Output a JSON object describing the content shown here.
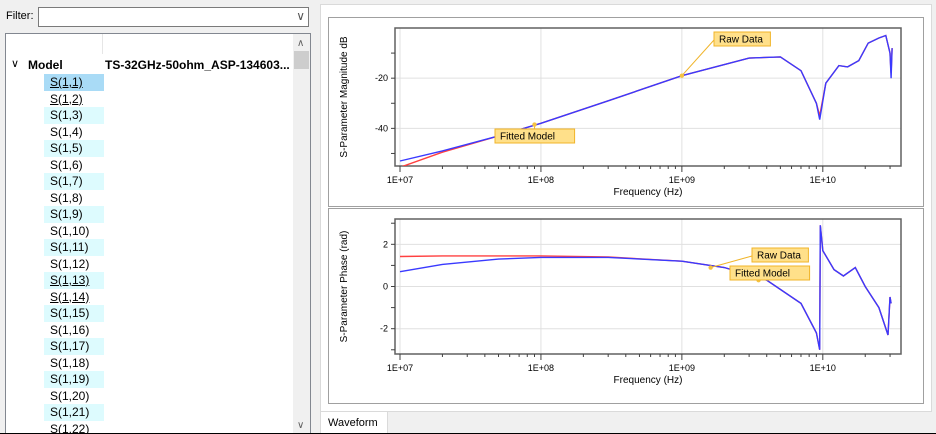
{
  "filter": {
    "label": "Filter:",
    "value": "",
    "placeholder": ""
  },
  "tree": {
    "root_label": "Model",
    "root_value": "TS-32GHz-50ohm_ASP-134603...",
    "items": [
      {
        "label": "S(1,1)",
        "selected": true,
        "link": true
      },
      {
        "label": "S(1,2)",
        "link": true
      },
      {
        "label": "S(1,3)"
      },
      {
        "label": "S(1,4)"
      },
      {
        "label": "S(1,5)"
      },
      {
        "label": "S(1,6)"
      },
      {
        "label": "S(1,7)"
      },
      {
        "label": "S(1,8)"
      },
      {
        "label": "S(1,9)"
      },
      {
        "label": "S(1,10)"
      },
      {
        "label": "S(1,11)"
      },
      {
        "label": "S(1,12)"
      },
      {
        "label": "S(1,13)",
        "link": true
      },
      {
        "label": "S(1,14)",
        "link": true
      },
      {
        "label": "S(1,15)"
      },
      {
        "label": "S(1,16)"
      },
      {
        "label": "S(1,17)"
      },
      {
        "label": "S(1,18)"
      },
      {
        "label": "S(1,19)"
      },
      {
        "label": "S(1,20)"
      },
      {
        "label": "S(1,21)"
      },
      {
        "label": "S(1,22)"
      }
    ]
  },
  "tabs": {
    "waveform": "Waveform"
  },
  "colors": {
    "raw": "#3a3aff",
    "fitted": "#ff4040",
    "annotation_bg": "#ffe08a",
    "annotation_border": "#f0b429"
  },
  "chart_data": [
    {
      "type": "line",
      "title": "",
      "xlabel": "Frequency (Hz)",
      "ylabel": "S-Parameter Magnitude dB",
      "xscale": "log",
      "xlim": [
        10000000.0,
        32000000000.0
      ],
      "ylim": [
        -55,
        0
      ],
      "x_ticks": [
        "1E+07",
        "1E+08",
        "1E+09",
        "1E+10"
      ],
      "y_ticks": [
        "-40",
        "-20"
      ],
      "grid": true,
      "annotations": [
        {
          "text": "Raw Data",
          "x": 1000000000.0,
          "y": -19
        },
        {
          "text": "Fitted Model",
          "x": 90000000.0,
          "y": -38.5
        }
      ],
      "series": [
        {
          "name": "Raw Data",
          "color": "#3a3aff",
          "x": [
            10000000.0,
            20000000.0,
            50000000.0,
            100000000.0,
            300000000.0,
            1000000000.0,
            3000000000.0,
            5000000000.0,
            7000000000.0,
            9000000000.0,
            9500000000.0,
            10500000000.0,
            13000000000.0,
            15000000000.0,
            18000000000.0,
            21000000000.0,
            25000000000.0,
            28000000000.0,
            30000000000.0,
            30500000000.0,
            31000000000.0
          ],
          "y": [
            -53,
            -49,
            -43,
            -38,
            -29,
            -19,
            -12,
            -11.5,
            -17,
            -30,
            -36.5,
            -22,
            -15,
            -15.5,
            -13,
            -6,
            -4,
            -3,
            -10,
            -20,
            -8
          ]
        },
        {
          "name": "Fitted Model",
          "color": "#ff4040",
          "x": [
            10000000.0,
            20000000.0,
            50000000.0,
            100000000.0,
            300000000.0,
            1000000000.0,
            3000000000.0,
            5000000000.0,
            7000000000.0,
            9000000000.0,
            9500000000.0,
            10500000000.0,
            13000000000.0,
            15000000000.0,
            18000000000.0,
            21000000000.0,
            25000000000.0,
            28000000000.0,
            30000000000.0,
            30500000000.0,
            31000000000.0
          ],
          "y": [
            -55.5,
            -49.5,
            -43,
            -38,
            -29,
            -19,
            -12,
            -11.5,
            -17,
            -30,
            -35,
            -22,
            -15,
            -15.5,
            -13,
            -6,
            -4,
            -3,
            -10,
            -18,
            -8
          ]
        }
      ]
    },
    {
      "type": "line",
      "title": "",
      "xlabel": "Frequency (Hz)",
      "ylabel": "S-Parameter Phase (rad)",
      "xscale": "log",
      "xlim": [
        10000000.0,
        32000000000.0
      ],
      "ylim": [
        -3.2,
        3.2
      ],
      "x_ticks": [
        "1E+07",
        "1E+08",
        "1E+09",
        "1E+10"
      ],
      "y_ticks": [
        "-2",
        "0",
        "2"
      ],
      "grid": true,
      "annotations": [
        {
          "text": "Raw Data",
          "x": 1600000000.0,
          "y": 0.9
        },
        {
          "text": "Fitted Model",
          "x": 3500000000.0,
          "y": 0.3
        }
      ],
      "series": [
        {
          "name": "Raw Data",
          "color": "#3a3aff",
          "x": [
            10000000.0,
            20000000.0,
            50000000.0,
            100000000.0,
            300000000.0,
            1000000000.0,
            2000000000.0,
            4000000000.0,
            7000000000.0,
            9000000000.0,
            9500000000.0,
            9600000000.0,
            10000000000.0,
            12000000000.0,
            14000000000.0,
            17000000000.0,
            20000000000.0,
            25000000000.0,
            29000000000.0,
            30000000000.0,
            30500000000.0
          ],
          "y": [
            0.7,
            1.05,
            1.3,
            1.38,
            1.38,
            1.2,
            0.9,
            0.3,
            -0.8,
            -2.2,
            -3.0,
            2.9,
            1.7,
            0.8,
            0.5,
            0.9,
            0.0,
            -1.0,
            -2.3,
            -0.5,
            -0.8
          ]
        },
        {
          "name": "Fitted Model",
          "color": "#ff4040",
          "x": [
            10000000.0,
            20000000.0,
            50000000.0,
            100000000.0,
            300000000.0,
            1000000000.0,
            2000000000.0,
            4000000000.0,
            7000000000.0,
            9000000000.0,
            9500000000.0,
            9600000000.0,
            10000000000.0,
            12000000000.0,
            14000000000.0,
            17000000000.0,
            20000000000.0,
            25000000000.0,
            29000000000.0,
            30000000000.0,
            30500000000.0
          ],
          "y": [
            1.42,
            1.45,
            1.45,
            1.45,
            1.4,
            1.2,
            0.9,
            0.3,
            -0.8,
            -2.2,
            -3.0,
            2.9,
            1.7,
            0.8,
            0.5,
            0.9,
            0.0,
            -1.0,
            -2.3,
            -0.5,
            -0.8
          ]
        }
      ]
    }
  ]
}
